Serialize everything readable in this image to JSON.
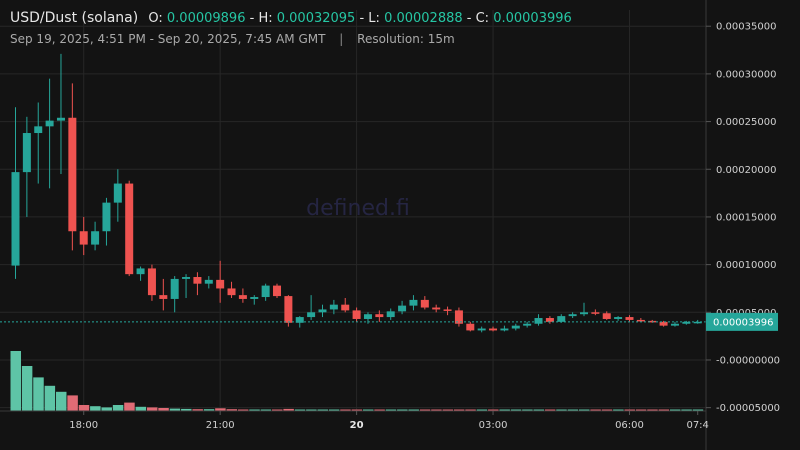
{
  "header": {
    "symbol": "USD/Dust (solana)",
    "o_label": "O:",
    "o_value": "0.00009896",
    "h_label": "- H:",
    "h_value": "0.00032095",
    "l_label": "- L:",
    "l_value": "0.00002888",
    "c_label": "- C:",
    "c_value": "0.00003996"
  },
  "subheader": {
    "range": "Sep 19, 2025, 4:51 PM - Sep 20, 2025, 7:45 AM GMT",
    "separator": "|",
    "resolution": "Resolution: 15m"
  },
  "watermark": "defined.fi",
  "colors": {
    "up": "#26a69a",
    "down": "#ef5350",
    "vol_up": "#5ec4a6",
    "vol_down": "#e06b75",
    "last_price": "#26a69a"
  },
  "chart_data": {
    "type": "candlestick",
    "y_ticks": [
      "0.00035000",
      "0.00030000",
      "0.00025000",
      "0.00020000",
      "0.00015000",
      "0.00010000",
      "0.00005000",
      "-0.00000000",
      "-0.00005000"
    ],
    "y_tick_values": [
      0.00035,
      0.0003,
      0.00025,
      0.0002,
      0.00015,
      0.0001,
      5e-05,
      0,
      -5e-05
    ],
    "ylim": [
      -5.35e-05,
      0.000367
    ],
    "x_ticks": [
      {
        "label": "18:00",
        "bar": 6,
        "bold": false
      },
      {
        "label": "21:00",
        "bar": 18,
        "bold": false
      },
      {
        "label": "20",
        "bar": 30,
        "bold": true
      },
      {
        "label": "03:00",
        "bar": 42,
        "bold": false
      },
      {
        "label": "06:00",
        "bar": 54,
        "bold": false
      },
      {
        "label": "07:4",
        "bar": 60,
        "bold": false
      }
    ],
    "last_price": 3.996e-05,
    "last_price_label": "0.00003996",
    "candles": [
      {
        "o": 9.9e-05,
        "h": 0.000265,
        "l": 8.5e-05,
        "c": 0.000197,
        "v": 1.0
      },
      {
        "o": 0.000197,
        "h": 0.000255,
        "l": 0.00015,
        "c": 0.000238,
        "v": 0.75
      },
      {
        "o": 0.000238,
        "h": 0.00027,
        "l": 0.000185,
        "c": 0.000245,
        "v": 0.56
      },
      {
        "o": 0.000245,
        "h": 0.000295,
        "l": 0.00018,
        "c": 0.000251,
        "v": 0.42
      },
      {
        "o": 0.000251,
        "h": 0.000321,
        "l": 0.000195,
        "c": 0.000254,
        "v": 0.32
      },
      {
        "o": 0.000254,
        "h": 0.00029,
        "l": 0.000115,
        "c": 0.000135,
        "v": 0.26
      },
      {
        "o": 0.000135,
        "h": 0.00015,
        "l": 0.00011,
        "c": 0.000121,
        "v": 0.1
      },
      {
        "o": 0.000121,
        "h": 0.000145,
        "l": 0.000115,
        "c": 0.000135,
        "v": 0.08
      },
      {
        "o": 0.000135,
        "h": 0.00017,
        "l": 0.00012,
        "c": 0.000165,
        "v": 0.06
      },
      {
        "o": 0.000165,
        "h": 0.0002,
        "l": 0.000145,
        "c": 0.000185,
        "v": 0.1
      },
      {
        "o": 0.000185,
        "h": 0.000188,
        "l": 8.8e-05,
        "c": 9e-05,
        "v": 0.14
      },
      {
        "o": 9e-05,
        "h": 9.8e-05,
        "l": 8.3e-05,
        "c": 9.6e-05,
        "v": 0.07
      },
      {
        "o": 9.6e-05,
        "h": 0.0001,
        "l": 6.2e-05,
        "c": 6.8e-05,
        "v": 0.06
      },
      {
        "o": 6.8e-05,
        "h": 8.5e-05,
        "l": 5.2e-05,
        "c": 6.4e-05,
        "v": 0.05
      },
      {
        "o": 6.4e-05,
        "h": 8.8e-05,
        "l": 5e-05,
        "c": 8.5e-05,
        "v": 0.04
      },
      {
        "o": 8.5e-05,
        "h": 9e-05,
        "l": 6.5e-05,
        "c": 8.7e-05,
        "v": 0.035
      },
      {
        "o": 8.7e-05,
        "h": 9.2e-05,
        "l": 6.8e-05,
        "c": 8e-05,
        "v": 0.03
      },
      {
        "o": 8e-05,
        "h": 8.8e-05,
        "l": 7.5e-05,
        "c": 8.4e-05,
        "v": 0.03
      },
      {
        "o": 8.4e-05,
        "h": 0.000104,
        "l": 6e-05,
        "c": 7.5e-05,
        "v": 0.045
      },
      {
        "o": 7.5e-05,
        "h": 8.2e-05,
        "l": 6.5e-05,
        "c": 6.8e-05,
        "v": 0.03
      },
      {
        "o": 6.8e-05,
        "h": 7.5e-05,
        "l": 6e-05,
        "c": 6.4e-05,
        "v": 0.025
      },
      {
        "o": 6.4e-05,
        "h": 6.8e-05,
        "l": 5.8e-05,
        "c": 6.6e-05,
        "v": 0.02
      },
      {
        "o": 6.6e-05,
        "h": 8e-05,
        "l": 6.2e-05,
        "c": 7.8e-05,
        "v": 0.02
      },
      {
        "o": 7.8e-05,
        "h": 8e-05,
        "l": 6.5e-05,
        "c": 6.7e-05,
        "v": 0.025
      },
      {
        "o": 6.7e-05,
        "h": 6.8e-05,
        "l": 3.5e-05,
        "c": 3.9e-05,
        "v": 0.035
      },
      {
        "o": 3.9e-05,
        "h": 4.6e-05,
        "l": 3.4e-05,
        "c": 4.5e-05,
        "v": 0.02
      },
      {
        "o": 4.5e-05,
        "h": 6.8e-05,
        "l": 4.2e-05,
        "c": 5e-05,
        "v": 0.025
      },
      {
        "o": 5e-05,
        "h": 5.8e-05,
        "l": 4.5e-05,
        "c": 5.3e-05,
        "v": 0.02
      },
      {
        "o": 5.3e-05,
        "h": 6.3e-05,
        "l": 4.8e-05,
        "c": 5.8e-05,
        "v": 0.02
      },
      {
        "o": 5.8e-05,
        "h": 6.5e-05,
        "l": 5e-05,
        "c": 5.2e-05,
        "v": 0.02
      },
      {
        "o": 5.2e-05,
        "h": 5.5e-05,
        "l": 4e-05,
        "c": 4.3e-05,
        "v": 0.02
      },
      {
        "o": 4.3e-05,
        "h": 5e-05,
        "l": 3.8e-05,
        "c": 4.8e-05,
        "v": 0.015
      },
      {
        "o": 4.8e-05,
        "h": 5.2e-05,
        "l": 4e-05,
        "c": 4.5e-05,
        "v": 0.015
      },
      {
        "o": 4.5e-05,
        "h": 5.4e-05,
        "l": 4.2e-05,
        "c": 5.1e-05,
        "v": 0.015
      },
      {
        "o": 5.1e-05,
        "h": 6.2e-05,
        "l": 4.8e-05,
        "c": 5.7e-05,
        "v": 0.015
      },
      {
        "o": 5.7e-05,
        "h": 6.8e-05,
        "l": 5.2e-05,
        "c": 6.3e-05,
        "v": 0.02
      },
      {
        "o": 6.3e-05,
        "h": 6.7e-05,
        "l": 5.3e-05,
        "c": 5.5e-05,
        "v": 0.02
      },
      {
        "o": 5.5e-05,
        "h": 5.8e-05,
        "l": 5e-05,
        "c": 5.3e-05,
        "v": 0.015
      },
      {
        "o": 5.3e-05,
        "h": 5.6e-05,
        "l": 4.7e-05,
        "c": 5.2e-05,
        "v": 0.015
      },
      {
        "o": 5.2e-05,
        "h": 5.5e-05,
        "l": 3.5e-05,
        "c": 3.8e-05,
        "v": 0.025
      },
      {
        "o": 3.8e-05,
        "h": 4e-05,
        "l": 3e-05,
        "c": 3.1e-05,
        "v": 0.02
      },
      {
        "o": 3.1e-05,
        "h": 3.5e-05,
        "l": 2.9e-05,
        "c": 3.3e-05,
        "v": 0.015
      },
      {
        "o": 3.3e-05,
        "h": 3.5e-05,
        "l": 3e-05,
        "c": 3.1e-05,
        "v": 0.015
      },
      {
        "o": 3.1e-05,
        "h": 3.6e-05,
        "l": 3e-05,
        "c": 3.3e-05,
        "v": 0.015
      },
      {
        "o": 3.3e-05,
        "h": 3.8e-05,
        "l": 3.1e-05,
        "c": 3.6e-05,
        "v": 0.015
      },
      {
        "o": 3.6e-05,
        "h": 4e-05,
        "l": 3.4e-05,
        "c": 3.8e-05,
        "v": 0.015
      },
      {
        "o": 3.8e-05,
        "h": 4.8e-05,
        "l": 3.6e-05,
        "c": 4.4e-05,
        "v": 0.02
      },
      {
        "o": 4.4e-05,
        "h": 4.6e-05,
        "l": 3.8e-05,
        "c": 4e-05,
        "v": 0.015
      },
      {
        "o": 4e-05,
        "h": 4.8e-05,
        "l": 3.9e-05,
        "c": 4.6e-05,
        "v": 0.015
      },
      {
        "o": 4.6e-05,
        "h": 5e-05,
        "l": 4.4e-05,
        "c": 4.8e-05,
        "v": 0.015
      },
      {
        "o": 4.8e-05,
        "h": 6e-05,
        "l": 4.6e-05,
        "c": 5e-05,
        "v": 0.02
      },
      {
        "o": 5e-05,
        "h": 5.3e-05,
        "l": 4.7e-05,
        "c": 4.9e-05,
        "v": 0.015
      },
      {
        "o": 4.9e-05,
        "h": 5.1e-05,
        "l": 4.2e-05,
        "c": 4.3e-05,
        "v": 0.015
      },
      {
        "o": 4.3e-05,
        "h": 4.6e-05,
        "l": 4.1e-05,
        "c": 4.5e-05,
        "v": 0.012
      },
      {
        "o": 4.5e-05,
        "h": 4.7e-05,
        "l": 4e-05,
        "c": 4.2e-05,
        "v": 0.012
      },
      {
        "o": 4.2e-05,
        "h": 4.4e-05,
        "l": 4e-05,
        "c": 4.1e-05,
        "v": 0.01
      },
      {
        "o": 4.1e-05,
        "h": 4.2e-05,
        "l": 3.9e-05,
        "c": 4e-05,
        "v": 0.01
      },
      {
        "o": 4e-05,
        "h": 4.1e-05,
        "l": 3.5e-05,
        "c": 3.6e-05,
        "v": 0.012
      },
      {
        "o": 3.6e-05,
        "h": 4e-05,
        "l": 3.5e-05,
        "c": 3.8e-05,
        "v": 0.01
      },
      {
        "o": 3.8e-05,
        "h": 4.1e-05,
        "l": 3.7e-05,
        "c": 4e-05,
        "v": 0.01
      },
      {
        "o": 4e-05,
        "h": 4.2e-05,
        "l": 3.8e-05,
        "c": 4e-05,
        "v": 0.01
      }
    ]
  }
}
